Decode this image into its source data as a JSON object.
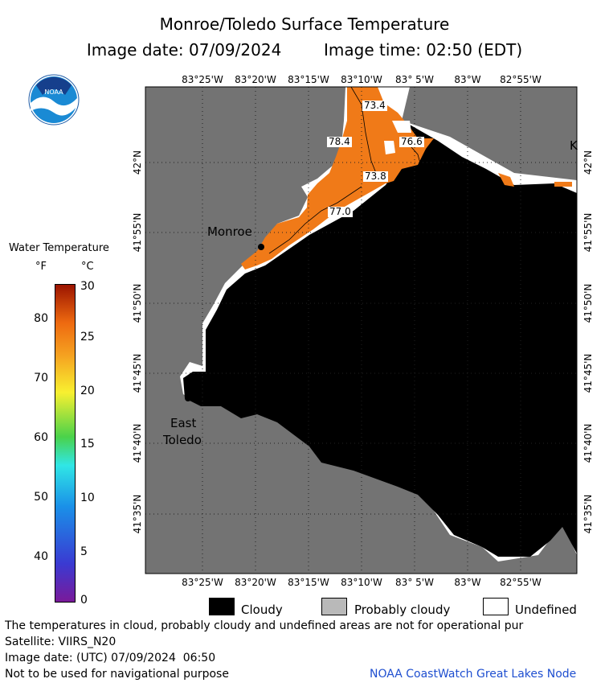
{
  "header": {
    "title": "Monroe/Toledo Surface Temperature",
    "image_date_label": "Image date: 07/09/2024",
    "image_time_label": "Image time: 02:50 (EDT)"
  },
  "logo": {
    "text": "NOAA"
  },
  "colorbar": {
    "title": "Water Temperature",
    "unit_f": "°F",
    "unit_c": "°C",
    "f_ticks": [
      "80",
      "70",
      "60",
      "50",
      "40"
    ],
    "c_ticks": [
      "30",
      "25",
      "20",
      "15",
      "10",
      "5",
      "0"
    ]
  },
  "axes": {
    "lon_labels": [
      "83°25'W",
      "83°20'W",
      "83°15'W",
      "83°10'W",
      "83° 5'W",
      "83°W",
      "82°55'W"
    ],
    "lat_labels": [
      "42°N",
      "41°55'N",
      "41°50'N",
      "41°45'N",
      "41°40'N",
      "41°35'N"
    ]
  },
  "map": {
    "places": {
      "monroe": "Monroe",
      "east": "East",
      "toledo": "Toledo",
      "edge_letter": "K"
    },
    "temp_labels": [
      "73.4",
      "78.4",
      "76.6",
      "73.8",
      "77.0"
    ],
    "colors": {
      "land": "#737373",
      "cloud": "#000000",
      "warm_water": "#f07a18",
      "undefined": "#ffffff"
    }
  },
  "legend": {
    "cloudy": "Cloudy",
    "probably_cloudy": "Probably cloudy",
    "undefined": "Undefined"
  },
  "footer": {
    "note": "The temperatures in cloud, probably cloudy and undefined areas are not for operational pur",
    "satellite": "Satellite: VIIRS_N20",
    "utc_date": "Image date: (UTC) 07/09/2024  06:50",
    "nav_warning": "Not to be used for navigational purpose",
    "credit": "NOAA CoastWatch Great Lakes Node"
  }
}
